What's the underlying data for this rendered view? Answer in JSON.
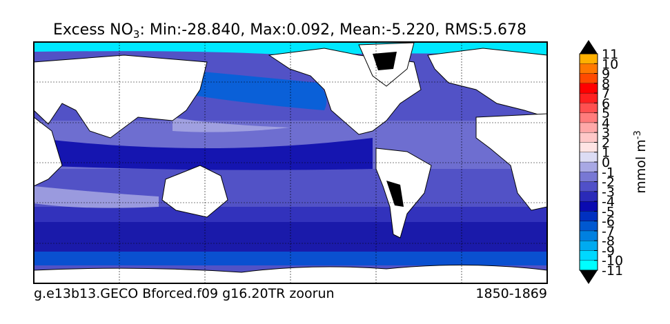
{
  "title": {
    "text": "Excess NO",
    "subscript": "3",
    "rest": ": Min:-28.840, Max:0.092, Mean:-5.220, RMS:5.678"
  },
  "footer": {
    "left": "g.e13b13.GECO Bforced.f09 g16.20TR zoorun",
    "right": "1850-1869"
  },
  "colorbar": {
    "label": "mmol m",
    "label_superscript": "-3",
    "ylim": [
      -11,
      11
    ],
    "ticks": [
      -11,
      -10,
      -9,
      -8,
      -7,
      -6,
      -5,
      -4,
      -3,
      -2,
      -1,
      0,
      1,
      2,
      3,
      4,
      5,
      6,
      7,
      8,
      9,
      10,
      11
    ],
    "colors": [
      "#00ffff",
      "#00d8ff",
      "#00aaf0",
      "#0080e0",
      "#0058d0",
      "#0030c0",
      "#0a0ab0",
      "#2a2ab8",
      "#5050c8",
      "#7878d4",
      "#a8a8e4",
      "#dcdcf4",
      "#ffe4e4",
      "#ffc8c8",
      "#ffa8a8",
      "#ff7c7c",
      "#ff5050",
      "#ff2020",
      "#ff0000",
      "#ff4a00",
      "#ff7800",
      "#ffb000"
    ],
    "extend_color": "#000000"
  }
}
